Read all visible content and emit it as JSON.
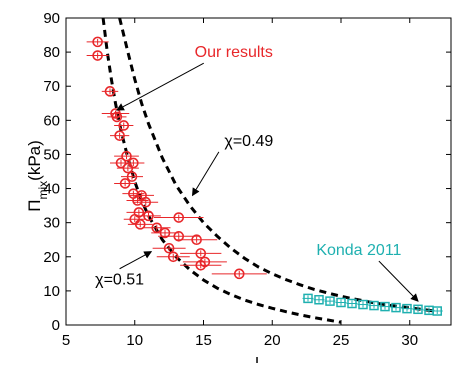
{
  "chart_data": {
    "type": "scatter",
    "xlabel": "l",
    "ylabel_main": "Π",
    "ylabel_sub": "mix",
    "ylabel_unit": "(kPa)",
    "xlim": [
      5,
      33
    ],
    "ylim": [
      0,
      90
    ],
    "xticks": [
      5,
      10,
      15,
      20,
      25,
      30
    ],
    "yticks": [
      0,
      10,
      20,
      30,
      40,
      50,
      60,
      70,
      80,
      90
    ],
    "grid": false,
    "colors": {
      "ours": "#e8272a",
      "konda": "#1fb0b0",
      "curve": "#000000",
      "axis": "#000000"
    },
    "series": [
      {
        "name": "Our results",
        "marker": "circle",
        "points": [
          {
            "x": 7.3,
            "y": 83.0,
            "xerr": 0.8
          },
          {
            "x": 7.3,
            "y": 79.0,
            "xerr": 0.8
          },
          {
            "x": 8.2,
            "y": 68.5,
            "xerr": 0.6
          },
          {
            "x": 8.6,
            "y": 62.0,
            "xerr": 1.0
          },
          {
            "x": 8.7,
            "y": 61.0,
            "xerr": 0.7
          },
          {
            "x": 9.2,
            "y": 58.5,
            "xerr": 0.7
          },
          {
            "x": 8.9,
            "y": 55.5,
            "xerr": 0.7
          },
          {
            "x": 9.4,
            "y": 49.5,
            "xerr": 0.9
          },
          {
            "x": 9.0,
            "y": 47.5,
            "xerr": 0.8
          },
          {
            "x": 9.9,
            "y": 47.5,
            "xerr": 0.8
          },
          {
            "x": 9.5,
            "y": 46.0,
            "xerr": 0.8
          },
          {
            "x": 9.8,
            "y": 43.5,
            "xerr": 0.8
          },
          {
            "x": 9.3,
            "y": 41.5,
            "xerr": 0.8
          },
          {
            "x": 9.9,
            "y": 38.5,
            "xerr": 0.8
          },
          {
            "x": 10.5,
            "y": 38.0,
            "xerr": 0.9
          },
          {
            "x": 10.2,
            "y": 36.5,
            "xerr": 0.8
          },
          {
            "x": 10.8,
            "y": 36.0,
            "xerr": 0.9
          },
          {
            "x": 10.3,
            "y": 33.0,
            "xerr": 0.9
          },
          {
            "x": 11.0,
            "y": 32.0,
            "xerr": 0.9
          },
          {
            "x": 10.0,
            "y": 31.0,
            "xerr": 0.8
          },
          {
            "x": 10.4,
            "y": 29.5,
            "xerr": 0.9
          },
          {
            "x": 11.6,
            "y": 28.5,
            "xerr": 1.0
          },
          {
            "x": 12.2,
            "y": 27.0,
            "xerr": 1.0
          },
          {
            "x": 13.2,
            "y": 31.5,
            "xerr": 1.8
          },
          {
            "x": 13.2,
            "y": 26.0,
            "xerr": 1.5
          },
          {
            "x": 14.5,
            "y": 25.0,
            "xerr": 1.5
          },
          {
            "x": 12.5,
            "y": 22.5,
            "xerr": 1.2
          },
          {
            "x": 14.8,
            "y": 21.0,
            "xerr": 1.5
          },
          {
            "x": 12.8,
            "y": 20.0,
            "xerr": 1.2
          },
          {
            "x": 15.1,
            "y": 18.5,
            "xerr": 1.6
          },
          {
            "x": 14.8,
            "y": 17.5,
            "xerr": 1.5
          },
          {
            "x": 17.6,
            "y": 15.0,
            "xerr": 2.0
          }
        ]
      },
      {
        "name": "Konda 2011",
        "marker": "square",
        "points": [
          {
            "x": 22.6,
            "y": 7.8,
            "xerr": 0.4
          },
          {
            "x": 23.4,
            "y": 7.4,
            "xerr": 0.4
          },
          {
            "x": 24.2,
            "y": 7.0,
            "xerr": 0.4
          },
          {
            "x": 25.0,
            "y": 6.6,
            "xerr": 0.4
          },
          {
            "x": 25.8,
            "y": 6.3,
            "xerr": 0.4
          },
          {
            "x": 26.6,
            "y": 6.0,
            "xerr": 0.4
          },
          {
            "x": 27.4,
            "y": 5.7,
            "xerr": 0.4
          },
          {
            "x": 28.2,
            "y": 5.4,
            "xerr": 0.4
          },
          {
            "x": 29.0,
            "y": 5.1,
            "xerr": 0.4
          },
          {
            "x": 29.8,
            "y": 4.8,
            "xerr": 0.4
          },
          {
            "x": 30.6,
            "y": 4.6,
            "xerr": 0.4
          },
          {
            "x": 31.4,
            "y": 4.3,
            "xerr": 0.4
          },
          {
            "x": 32.0,
            "y": 4.1,
            "xerr": 0.4
          }
        ]
      }
    ],
    "curves": [
      {
        "label": "χ=0.49",
        "style": "dashed",
        "points": [
          [
            8.9,
            90
          ],
          [
            9.5,
            80
          ],
          [
            10,
            72
          ],
          [
            10.5,
            65
          ],
          [
            11,
            59
          ],
          [
            11.5,
            54
          ],
          [
            12,
            49
          ],
          [
            13,
            41
          ],
          [
            14,
            35
          ],
          [
            15,
            30
          ],
          [
            16,
            26
          ],
          [
            17,
            22.5
          ],
          [
            18,
            19.5
          ],
          [
            19,
            17
          ],
          [
            20,
            15
          ],
          [
            21,
            13.3
          ],
          [
            22,
            11.8
          ],
          [
            23,
            10.5
          ],
          [
            24,
            9.4
          ],
          [
            25,
            8.4
          ],
          [
            26,
            7.6
          ],
          [
            27,
            6.8
          ],
          [
            28,
            6.1
          ],
          [
            29,
            5.5
          ],
          [
            30,
            5.0
          ],
          [
            31,
            4.5
          ],
          [
            32,
            4.0
          ]
        ]
      },
      {
        "label": "χ=0.51",
        "style": "dashed",
        "points": [
          [
            7.7,
            90
          ],
          [
            8.0,
            80
          ],
          [
            8.3,
            72
          ],
          [
            8.6,
            65
          ],
          [
            9,
            57
          ],
          [
            9.5,
            49
          ],
          [
            10,
            42
          ],
          [
            10.5,
            36.5
          ],
          [
            11,
            32
          ],
          [
            12,
            25
          ],
          [
            13,
            20
          ],
          [
            14,
            16.2
          ],
          [
            15,
            13.2
          ],
          [
            16,
            10.8
          ],
          [
            17,
            8.9
          ],
          [
            18,
            7.3
          ],
          [
            19,
            6.0
          ],
          [
            20,
            4.9
          ],
          [
            21,
            3.9
          ],
          [
            22,
            3.0
          ],
          [
            23,
            2.2
          ],
          [
            24,
            1.5
          ],
          [
            25,
            0.8
          ]
        ]
      }
    ],
    "annotations": [
      {
        "name": "our-results-label",
        "text": "Our results",
        "color": "#e8272a",
        "x": 17.2,
        "y": 78.5,
        "arrow_to": [
          8.7,
          63
        ]
      },
      {
        "name": "chi-049-label",
        "text": "χ=0.49",
        "color": "#000000",
        "x": 18.3,
        "y": 52.5,
        "arrow_to": [
          14.2,
          38
        ]
      },
      {
        "name": "chi-051-label",
        "text": "χ=0.51",
        "color": "#000000",
        "x": 8.9,
        "y": 11.8,
        "arrow_to": [
          11.2,
          21.5
        ]
      },
      {
        "name": "konda-label",
        "text": "Konda 2011",
        "color": "#1fb0b0",
        "x": 26.3,
        "y": 20.5,
        "arrow_to": [
          30.6,
          7
        ]
      }
    ]
  }
}
